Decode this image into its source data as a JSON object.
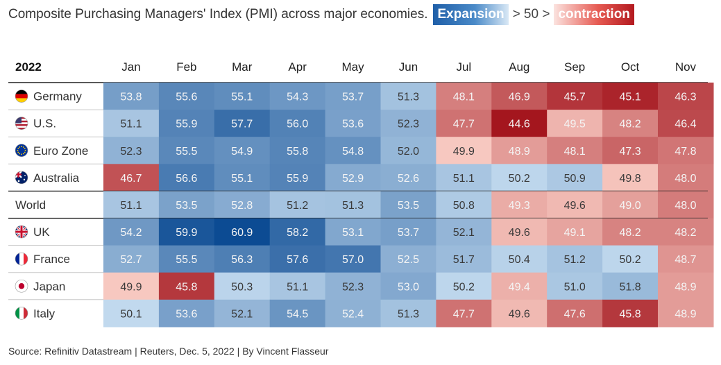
{
  "title": {
    "text": "Composite Purchasing Managers' Index (PMI) across major economies.",
    "expansion_label": "Expansion",
    "middle": "> 50 >",
    "contraction_label": "contraction"
  },
  "source": "Source: Refinitiv Datastream | Reuters, Dec. 5, 2022 | By Vincent Flasseur",
  "colors": {
    "expansion_dark": "#0b4a92",
    "expansion_light": "#c5dcf0",
    "contraction_light": "#fbd0c7",
    "contraction_dark": "#a3131c",
    "divider": "#222222",
    "row_divider": "#c8c8c8"
  },
  "chart_data": {
    "type": "heatmap",
    "corner_label": "2022",
    "columns": [
      "Jan",
      "Feb",
      "Mar",
      "Apr",
      "May",
      "Jun",
      "Jul",
      "Aug",
      "Sep",
      "Oct",
      "Nov"
    ],
    "threshold": 50,
    "rows": [
      {
        "name": "Germany",
        "flag": "germany-flag-icon",
        "values": [
          53.8,
          55.6,
          55.1,
          54.3,
          53.7,
          51.3,
          48.1,
          46.9,
          45.7,
          45.1,
          46.3
        ]
      },
      {
        "name": "U.S.",
        "flag": "us-flag-icon",
        "values": [
          51.1,
          55.9,
          57.7,
          56.0,
          53.6,
          52.3,
          47.7,
          44.6,
          49.5,
          48.2,
          46.4
        ]
      },
      {
        "name": "Euro Zone",
        "flag": "eu-flag-icon",
        "values": [
          52.3,
          55.5,
          54.9,
          55.8,
          54.8,
          52.0,
          49.9,
          48.9,
          48.1,
          47.3,
          47.8
        ]
      },
      {
        "name": "Australia",
        "flag": "australia-flag-icon",
        "values": [
          46.7,
          56.6,
          55.1,
          55.9,
          52.9,
          52.6,
          51.1,
          50.2,
          50.9,
          49.8,
          48.0
        ]
      },
      {
        "name": "World",
        "flag": "",
        "values": [
          51.1,
          53.5,
          52.8,
          51.2,
          51.3,
          53.5,
          50.8,
          49.3,
          49.6,
          49.0,
          48.0
        ]
      },
      {
        "name": "UK",
        "flag": "uk-flag-icon",
        "values": [
          54.2,
          59.9,
          60.9,
          58.2,
          53.1,
          53.7,
          52.1,
          49.6,
          49.1,
          48.2,
          48.2
        ]
      },
      {
        "name": "France",
        "flag": "france-flag-icon",
        "values": [
          52.7,
          55.5,
          56.3,
          57.6,
          57.0,
          52.5,
          51.7,
          50.4,
          51.2,
          50.2,
          48.7
        ]
      },
      {
        "name": "Japan",
        "flag": "japan-flag-icon",
        "values": [
          49.9,
          45.8,
          50.3,
          51.1,
          52.3,
          53.0,
          50.2,
          49.4,
          51.0,
          51.8,
          48.9
        ]
      },
      {
        "name": "Italy",
        "flag": "italy-flag-icon",
        "values": [
          50.1,
          53.6,
          52.1,
          54.5,
          52.4,
          51.3,
          47.7,
          49.6,
          47.6,
          45.8,
          48.9
        ]
      }
    ]
  }
}
